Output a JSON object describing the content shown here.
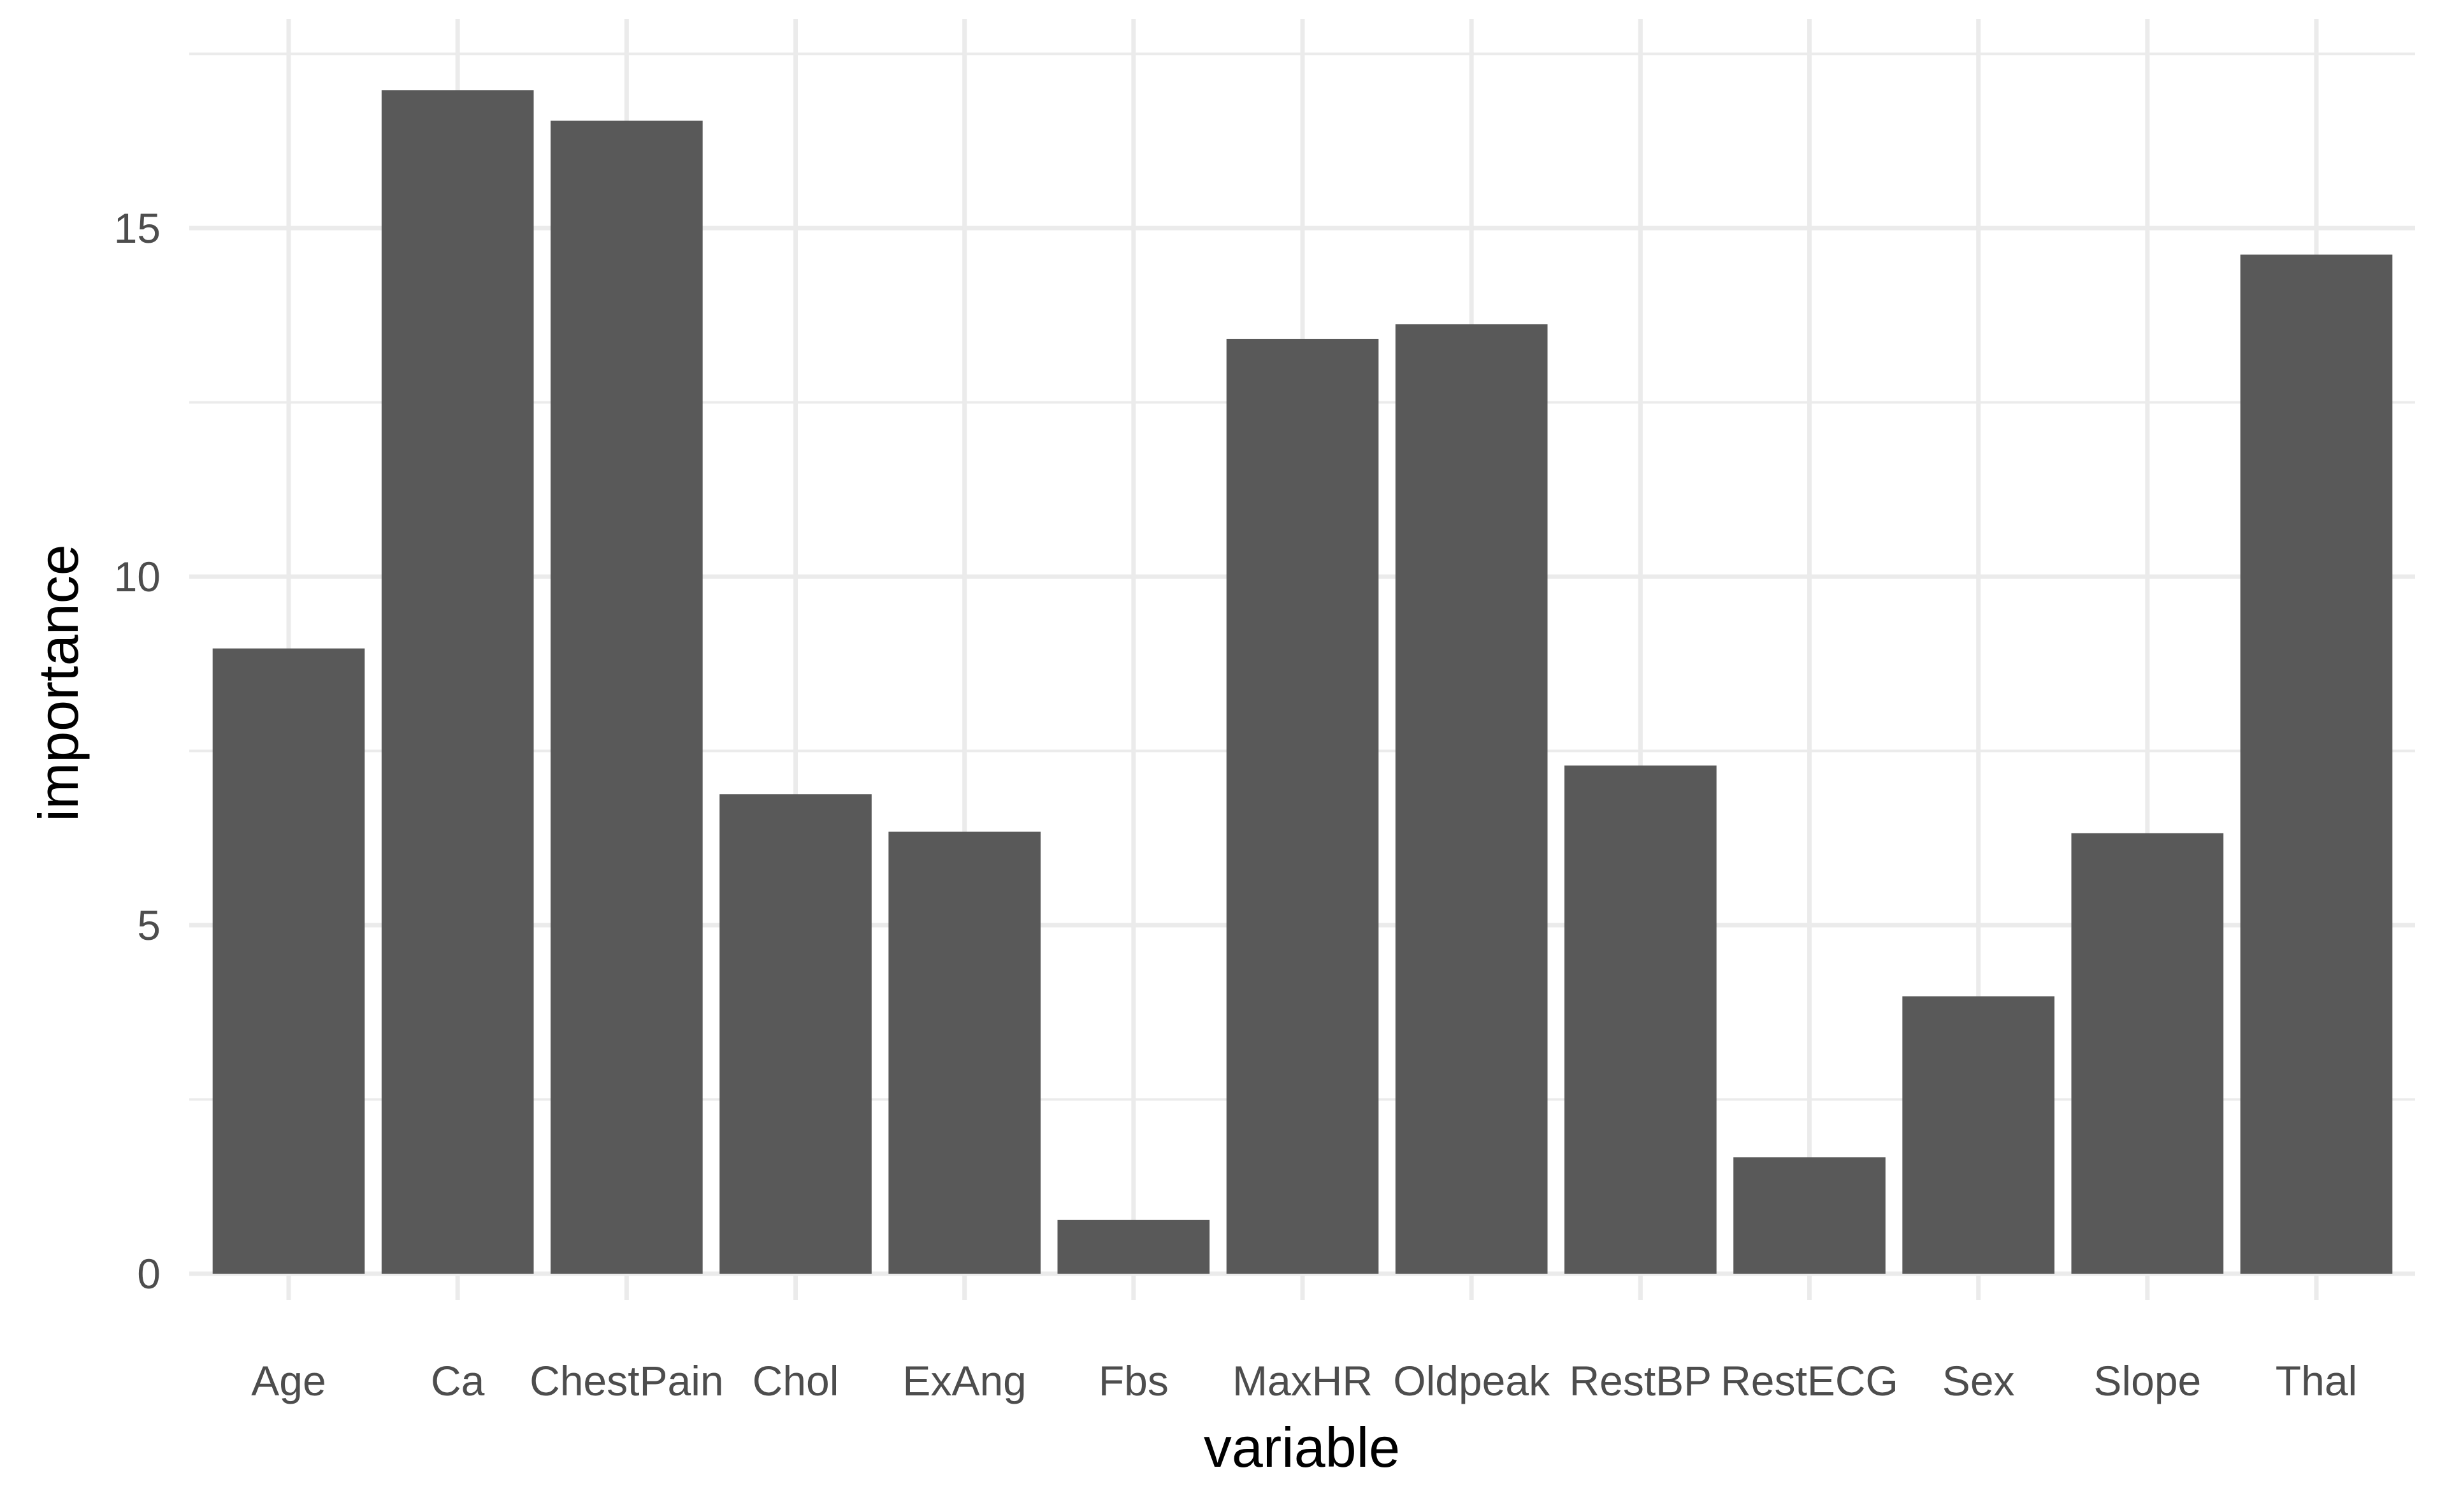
{
  "chart_data": {
    "type": "bar",
    "xlabel": "variable",
    "ylabel": "importance",
    "categories": [
      "Age",
      "Ca",
      "ChestPain",
      "Chol",
      "ExAng",
      "Fbs",
      "MaxHR",
      "Oldpeak",
      "RestBP",
      "RestECG",
      "Sex",
      "Slope",
      "Thal"
    ],
    "values": [
      8.97,
      16.98,
      16.54,
      6.88,
      6.34,
      0.77,
      13.41,
      13.62,
      7.29,
      1.67,
      3.98,
      6.32,
      14.62
    ],
    "ylim": [
      0,
      17.6
    ],
    "yticks": [
      0,
      5,
      10,
      15
    ],
    "grid": true,
    "bar_color": "#595959",
    "grid_color": "#ebebeb",
    "background": "#ffffff"
  }
}
